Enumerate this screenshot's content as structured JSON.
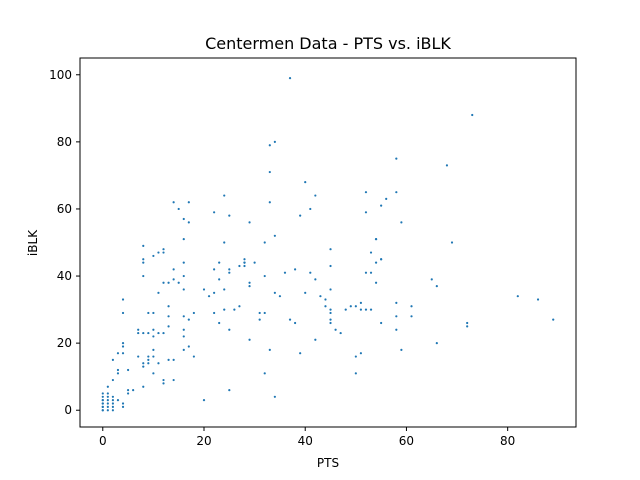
{
  "chart_data": {
    "type": "scatter",
    "title": "Centermen Data - PTS vs. iBLK",
    "xlabel": "PTS",
    "ylabel": "iBLK",
    "xlim": [
      -4.5,
      93.5
    ],
    "ylim": [
      -5,
      105
    ],
    "xticks": [
      0,
      20,
      40,
      60,
      80
    ],
    "yticks": [
      0,
      20,
      40,
      60,
      80,
      100
    ],
    "grid": false,
    "marker_color": "#1f77b4",
    "points": [
      [
        0,
        0
      ],
      [
        0,
        0
      ],
      [
        0,
        1
      ],
      [
        0,
        1
      ],
      [
        0,
        2
      ],
      [
        0,
        2
      ],
      [
        0,
        3
      ],
      [
        0,
        3
      ],
      [
        0,
        4
      ],
      [
        0,
        5
      ],
      [
        1,
        0
      ],
      [
        1,
        1
      ],
      [
        1,
        2
      ],
      [
        1,
        3
      ],
      [
        1,
        4
      ],
      [
        1,
        5
      ],
      [
        1,
        7
      ],
      [
        2,
        0
      ],
      [
        2,
        1
      ],
      [
        2,
        2
      ],
      [
        2,
        3
      ],
      [
        2,
        4
      ],
      [
        2,
        9
      ],
      [
        2,
        15
      ],
      [
        3,
        3
      ],
      [
        3,
        11
      ],
      [
        3,
        12
      ],
      [
        3,
        17
      ],
      [
        4,
        1
      ],
      [
        4,
        2
      ],
      [
        4,
        17
      ],
      [
        4,
        19
      ],
      [
        4,
        20
      ],
      [
        4,
        29
      ],
      [
        4,
        33
      ],
      [
        5,
        5
      ],
      [
        5,
        6
      ],
      [
        5,
        12
      ],
      [
        6,
        6
      ],
      [
        7,
        16
      ],
      [
        7,
        23
      ],
      [
        7,
        24
      ],
      [
        8,
        7
      ],
      [
        8,
        13
      ],
      [
        8,
        14
      ],
      [
        8,
        23
      ],
      [
        8,
        40
      ],
      [
        8,
        44
      ],
      [
        8,
        45
      ],
      [
        8,
        49
      ],
      [
        9,
        14
      ],
      [
        9,
        15
      ],
      [
        9,
        16
      ],
      [
        9,
        23
      ],
      [
        9,
        29
      ],
      [
        10,
        11
      ],
      [
        10,
        16
      ],
      [
        10,
        18
      ],
      [
        10,
        22
      ],
      [
        10,
        24
      ],
      [
        10,
        29
      ],
      [
        10,
        46
      ],
      [
        11,
        14
      ],
      [
        11,
        23
      ],
      [
        11,
        35
      ],
      [
        11,
        47
      ],
      [
        12,
        8
      ],
      [
        12,
        9
      ],
      [
        12,
        23
      ],
      [
        12,
        38
      ],
      [
        12,
        47
      ],
      [
        12,
        48
      ],
      [
        13,
        15
      ],
      [
        13,
        25
      ],
      [
        13,
        28
      ],
      [
        13,
        31
      ],
      [
        13,
        38
      ],
      [
        14,
        15
      ],
      [
        14,
        42
      ],
      [
        14,
        62
      ],
      [
        14,
        9
      ],
      [
        14,
        39
      ],
      [
        15,
        38
      ],
      [
        15,
        60
      ],
      [
        16,
        18
      ],
      [
        16,
        22
      ],
      [
        16,
        24
      ],
      [
        16,
        28
      ],
      [
        16,
        36
      ],
      [
        16,
        40
      ],
      [
        16,
        44
      ],
      [
        16,
        51
      ],
      [
        16,
        57
      ],
      [
        17,
        19
      ],
      [
        17,
        27
      ],
      [
        17,
        56
      ],
      [
        17,
        62
      ],
      [
        18,
        16
      ],
      [
        18,
        29
      ],
      [
        20,
        3
      ],
      [
        20,
        36
      ],
      [
        21,
        34
      ],
      [
        22,
        29
      ],
      [
        22,
        35
      ],
      [
        22,
        42
      ],
      [
        22,
        59
      ],
      [
        23,
        26
      ],
      [
        23,
        39
      ],
      [
        23,
        44
      ],
      [
        24,
        30
      ],
      [
        24,
        36
      ],
      [
        24,
        64
      ],
      [
        24,
        50
      ],
      [
        25,
        6
      ],
      [
        25,
        24
      ],
      [
        25,
        41
      ],
      [
        25,
        42
      ],
      [
        25,
        58
      ],
      [
        26,
        30
      ],
      [
        27,
        31
      ],
      [
        27,
        43
      ],
      [
        28,
        43
      ],
      [
        28,
        44
      ],
      [
        28,
        44
      ],
      [
        28,
        45
      ],
      [
        29,
        21
      ],
      [
        29,
        37
      ],
      [
        29,
        38
      ],
      [
        29,
        56
      ],
      [
        30,
        44
      ],
      [
        31,
        27
      ],
      [
        31,
        29
      ],
      [
        32,
        11
      ],
      [
        32,
        29
      ],
      [
        32,
        40
      ],
      [
        32,
        50
      ],
      [
        33,
        18
      ],
      [
        33,
        62
      ],
      [
        33,
        71
      ],
      [
        33,
        79
      ],
      [
        34,
        4
      ],
      [
        34,
        35
      ],
      [
        34,
        52
      ],
      [
        34,
        80
      ],
      [
        35,
        34
      ],
      [
        36,
        41
      ],
      [
        37,
        99
      ],
      [
        37,
        27
      ],
      [
        38,
        26
      ],
      [
        38,
        42
      ],
      [
        39,
        17
      ],
      [
        39,
        58
      ],
      [
        40,
        35
      ],
      [
        40,
        68
      ],
      [
        41,
        60
      ],
      [
        41,
        41
      ],
      [
        42,
        21
      ],
      [
        42,
        39
      ],
      [
        42,
        64
      ],
      [
        43,
        34
      ],
      [
        44,
        31
      ],
      [
        44,
        33
      ],
      [
        45,
        26
      ],
      [
        45,
        27
      ],
      [
        45,
        29
      ],
      [
        45,
        30
      ],
      [
        45,
        43
      ],
      [
        45,
        48
      ],
      [
        45,
        36
      ],
      [
        46,
        24
      ],
      [
        47,
        23
      ],
      [
        48,
        30
      ],
      [
        49,
        31
      ],
      [
        50,
        11
      ],
      [
        50,
        16
      ],
      [
        50,
        31
      ],
      [
        51,
        17
      ],
      [
        51,
        32
      ],
      [
        51,
        30
      ],
      [
        52,
        30
      ],
      [
        52,
        41
      ],
      [
        52,
        59
      ],
      [
        52,
        65
      ],
      [
        53,
        30
      ],
      [
        53,
        41
      ],
      [
        53,
        47
      ],
      [
        54,
        51
      ],
      [
        54,
        51
      ],
      [
        54,
        44
      ],
      [
        54,
        38
      ],
      [
        55,
        26
      ],
      [
        55,
        45
      ],
      [
        55,
        45
      ],
      [
        55,
        61
      ],
      [
        56,
        63
      ],
      [
        58,
        75
      ],
      [
        58,
        65
      ],
      [
        58,
        32
      ],
      [
        58,
        28
      ],
      [
        58,
        24
      ],
      [
        59,
        18
      ],
      [
        59,
        56
      ],
      [
        61,
        28
      ],
      [
        61,
        31
      ],
      [
        65,
        39
      ],
      [
        66,
        20
      ],
      [
        66,
        37
      ],
      [
        68,
        73
      ],
      [
        69,
        50
      ],
      [
        72,
        25
      ],
      [
        72,
        26
      ],
      [
        73,
        88
      ],
      [
        82,
        34
      ],
      [
        86,
        33
      ],
      [
        89,
        27
      ]
    ]
  }
}
